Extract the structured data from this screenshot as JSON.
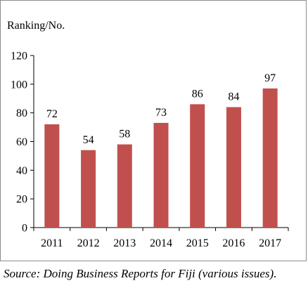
{
  "chart_data": {
    "type": "bar",
    "ylabel": "Ranking/No.",
    "categories": [
      "2011",
      "2012",
      "2013",
      "2014",
      "2015",
      "2016",
      "2017"
    ],
    "values": [
      72,
      54,
      58,
      73,
      86,
      84,
      97
    ],
    "ylim": [
      0,
      120
    ],
    "yticks": [
      0,
      20,
      40,
      60,
      80,
      100,
      120
    ],
    "grid": false,
    "legend": "none",
    "bar_color": "#c0504d"
  },
  "source_note": "Source: Doing Business Reports for Fiji (various issues)."
}
